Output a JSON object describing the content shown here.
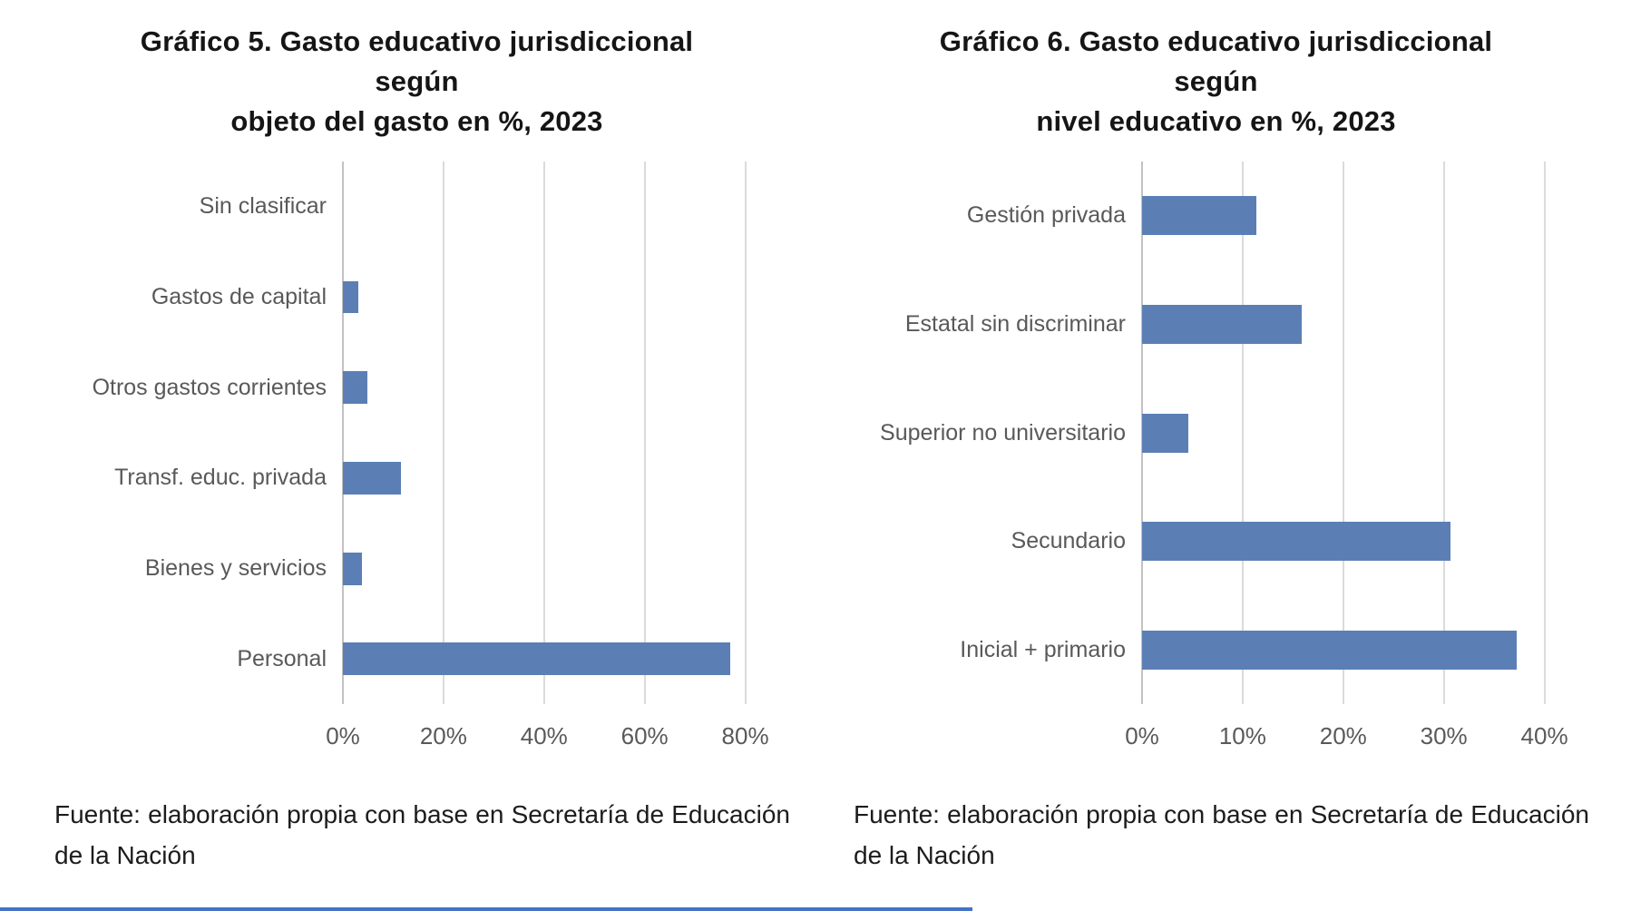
{
  "accent_colors": {
    "bar_blue": "#5B7FB5",
    "gridline_gray": "#DBDBDB",
    "axis_gray": "#C2C2C2",
    "label_gray": "#595959",
    "divider_blue": "#4472C4"
  },
  "chart_data": [
    {
      "type": "bar",
      "orientation": "horizontal",
      "title": "Gráfico 5. Gasto educativo jurisdiccional según\nobjeto del gasto en %, 2023",
      "categories": [
        "Sin clasificar",
        "Gastos de capital",
        "Otros gastos corrientes",
        "Transf. educ. privada",
        "Bienes y servicios",
        "Personal"
      ],
      "values": [
        0,
        3,
        4.9,
        11.6,
        3.8,
        77
      ],
      "tick_labels": [
        "0%",
        "20%",
        "40%",
        "60%",
        "80%"
      ],
      "tick_values": [
        0,
        20,
        40,
        60,
        80
      ],
      "xlim": [
        0,
        90
      ],
      "grid": true,
      "legend": "none",
      "source": "Fuente: elaboración propia con base en Secretaría de Educación de la Nación"
    },
    {
      "type": "bar",
      "orientation": "horizontal",
      "title": "Gráfico 6. Gasto educativo jurisdiccional según\nnivel educativo en %, 2023",
      "categories": [
        "Gestión privada",
        "Estatal sin discriminar",
        "Superior no universitario",
        "Secundario",
        "Inicial + primario"
      ],
      "values": [
        11.4,
        15.9,
        4.6,
        30.7,
        37.2
      ],
      "tick_labels": [
        "0%",
        "10%",
        "20%",
        "30%",
        "40%"
      ],
      "tick_values": [
        0,
        10,
        20,
        30,
        40
      ],
      "xlim": [
        0,
        45
      ],
      "grid": true,
      "legend": "none",
      "source": "Fuente: elaboración propia con base en Secretaría de Educación de la Nación"
    }
  ]
}
